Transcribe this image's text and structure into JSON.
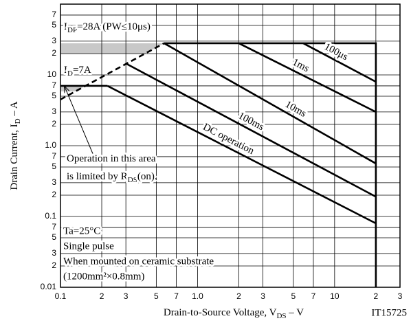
{
  "chart_data": {
    "type": "line",
    "x_label": [
      "Drain-to-Source Voltage, V",
      "DS",
      "  –  V"
    ],
    "y_label": [
      "Drain Current, I",
      "D",
      "  –  A"
    ],
    "figure_id": "IT15725",
    "log_x": true,
    "log_y": true,
    "grid": true,
    "xlim": [
      0.1,
      30
    ],
    "ylim": [
      0.01,
      100
    ],
    "xticks": [
      0.1,
      {
        "value": 0.2,
        "label": "2"
      },
      {
        "value": 0.3,
        "label": "3"
      },
      {
        "value": 0.5,
        "label": "5"
      },
      {
        "value": 0.7,
        "label": "7"
      },
      {
        "value": 1,
        "label": "1.0"
      },
      2,
      3,
      5,
      7,
      10,
      {
        "value": 20,
        "label": "2"
      },
      {
        "value": 30,
        "label": "3"
      }
    ],
    "yticks": [
      0.01,
      {
        "value": 0.02,
        "label": "2"
      },
      {
        "value": 0.03,
        "label": "3"
      },
      {
        "value": 0.05,
        "label": "5"
      },
      {
        "value": 0.07,
        "label": "7"
      },
      0.1,
      {
        "value": 0.2,
        "label": "2"
      },
      {
        "value": 0.3,
        "label": "3"
      },
      {
        "value": 0.5,
        "label": "5"
      },
      {
        "value": 0.7,
        "label": "7"
      },
      {
        "value": 1,
        "label": "1.0"
      },
      2,
      3,
      5,
      7,
      10,
      {
        "value": 20,
        "label": "2"
      },
      {
        "value": 30,
        "label": "3"
      },
      {
        "value": 50,
        "label": "5"
      },
      {
        "value": 70,
        "label": "7"
      }
    ],
    "series": [
      {
        "name": "100μs",
        "x": [
          5.9,
          20
        ],
        "values": [
          28,
          8
        ]
      },
      {
        "name": "1ms",
        "x": [
          2,
          20
        ],
        "values": [
          28,
          3
        ]
      },
      {
        "name": "10ms",
        "x": [
          0.57,
          20
        ],
        "values": [
          28,
          0.56
        ]
      },
      {
        "name": "100ms",
        "x": [
          0.3,
          20
        ],
        "values": [
          14.5,
          0.19
        ]
      },
      {
        "name": "DC operation",
        "x": [
          0.22,
          20
        ],
        "values": [
          7,
          0.08
        ]
      }
    ],
    "limits": [
      {
        "label": [
          "I",
          "DP",
          "=28A (PW≤10μs)"
        ],
        "x": [
          0.57,
          20,
          20
        ],
        "values": [
          28,
          28,
          0.01
        ]
      },
      {
        "label": [
          "I",
          "D",
          "=7A"
        ],
        "x": [
          0.1,
          0.22
        ],
        "values": [
          7,
          7
        ]
      },
      {
        "x": [
          0.1,
          0.57
        ],
        "values": [
          4.5,
          28
        ],
        "dashed": true
      }
    ],
    "annotation": [
      [
        "Operation in this area"
      ],
      [
        "is limited by R",
        "DS",
        "(on)."
      ]
    ],
    "conditions": [
      "Ta=25°C",
      "Single pulse",
      "When mounted on ceramic substrate",
      "(1200mm²×0.8mm)"
    ]
  }
}
